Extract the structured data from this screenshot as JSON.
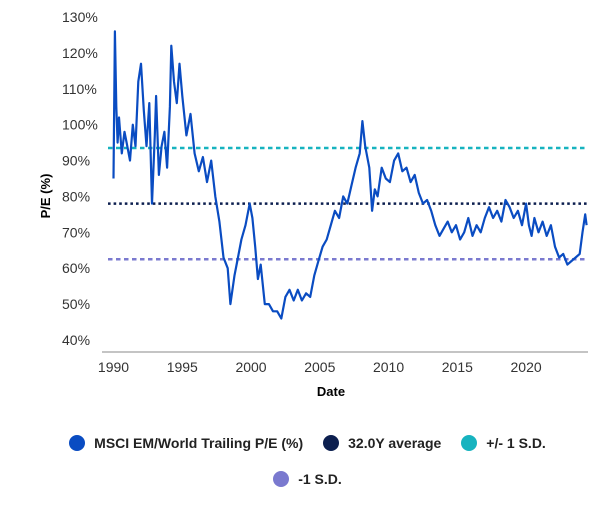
{
  "chart_data": {
    "type": "line",
    "title": "",
    "xlabel": "Date",
    "ylabel": "P/E (%)",
    "xlim": [
      1989.6,
      2024.5
    ],
    "ylim": [
      40,
      130
    ],
    "x_ticks": [
      1990,
      1995,
      2000,
      2005,
      2010,
      2015,
      2020
    ],
    "x_tick_labels": [
      "1990",
      "1995",
      "2000",
      "2005",
      "2010",
      "2015",
      "2020"
    ],
    "y_ticks": [
      40,
      50,
      60,
      70,
      80,
      90,
      100,
      110,
      120,
      130
    ],
    "y_tick_labels": [
      "40%",
      "50%",
      "60%",
      "70%",
      "80%",
      "90%",
      "100%",
      "110%",
      "120%",
      "130%"
    ],
    "grid": false,
    "series": [
      {
        "name": "MSCI EM/World Trailing P/E (%)",
        "color": "#0a4cc2",
        "x": [
          1990.0,
          1990.1,
          1990.2,
          1990.3,
          1990.4,
          1990.6,
          1990.8,
          1991.0,
          1991.2,
          1991.4,
          1991.6,
          1991.8,
          1992.0,
          1992.2,
          1992.4,
          1992.6,
          1992.8,
          1993.0,
          1993.1,
          1993.3,
          1993.5,
          1993.7,
          1993.9,
          1994.1,
          1994.2,
          1994.4,
          1994.6,
          1994.8,
          1995.0,
          1995.3,
          1995.6,
          1995.9,
          1996.2,
          1996.5,
          1996.8,
          1997.1,
          1997.4,
          1997.7,
          1998.0,
          1998.3,
          1998.5,
          1998.8,
          1999.0,
          1999.3,
          1999.6,
          1999.9,
          2000.1,
          2000.3,
          2000.5,
          2000.7,
          2001.0,
          2001.3,
          2001.6,
          2001.9,
          2002.2,
          2002.5,
          2002.8,
          2003.1,
          2003.4,
          2003.7,
          2004.0,
          2004.3,
          2004.6,
          2004.9,
          2005.2,
          2005.5,
          2005.8,
          2006.1,
          2006.4,
          2006.7,
          2007.0,
          2007.3,
          2007.6,
          2007.9,
          2008.1,
          2008.3,
          2008.6,
          2008.8,
          2009.0,
          2009.2,
          2009.5,
          2009.8,
          2010.1,
          2010.4,
          2010.7,
          2011.0,
          2011.3,
          2011.6,
          2011.9,
          2012.2,
          2012.5,
          2012.8,
          2013.1,
          2013.4,
          2013.7,
          2014.0,
          2014.3,
          2014.6,
          2014.9,
          2015.2,
          2015.5,
          2015.8,
          2016.1,
          2016.4,
          2016.7,
          2017.0,
          2017.3,
          2017.6,
          2017.9,
          2018.2,
          2018.5,
          2018.8,
          2019.1,
          2019.4,
          2019.7,
          2020.0,
          2020.2,
          2020.4,
          2020.6,
          2020.9,
          2021.2,
          2021.5,
          2021.8,
          2022.1,
          2022.4,
          2022.7,
          2023.0,
          2023.3,
          2023.6,
          2023.9,
          2024.1,
          2024.3,
          2024.4
        ],
        "values": [
          85,
          126,
          105,
          95,
          102,
          92,
          98,
          94,
          90,
          100,
          94,
          112,
          117,
          104,
          94,
          106,
          78,
          97,
          108,
          86,
          94,
          98,
          88,
          105,
          122,
          112,
          106,
          117,
          108,
          97,
          103,
          92,
          87,
          91,
          84,
          90,
          80,
          73,
          63,
          60,
          50,
          58,
          62,
          68,
          72,
          78,
          74,
          66,
          57,
          61,
          50,
          50,
          48,
          48,
          46,
          52,
          54,
          51,
          54,
          51,
          53,
          52,
          58,
          62,
          66,
          68,
          72,
          76,
          74,
          80,
          78,
          83,
          88,
          92,
          101,
          94,
          88,
          76,
          82,
          80,
          88,
          85,
          84,
          90,
          92,
          87,
          88,
          84,
          86,
          81,
          78,
          79,
          76,
          72,
          69,
          71,
          73,
          70,
          72,
          68,
          70,
          74,
          69,
          72,
          70,
          74,
          77,
          74,
          76,
          73,
          79,
          77,
          74,
          76,
          72,
          78,
          72,
          69,
          74,
          70,
          73,
          69,
          72,
          66,
          63,
          64,
          61,
          62,
          63,
          64,
          70,
          75,
          72
        ]
      },
      {
        "name": "32.0Y average",
        "color": "#0c1f4f",
        "x": [
          1989.6,
          2024.5
        ],
        "values": [
          78,
          78
        ]
      },
      {
        "name": "+/- 1 S.D.",
        "color": "#17b3bf",
        "x": [
          1989.6,
          2024.5
        ],
        "values": [
          93.5,
          93.5
        ]
      },
      {
        "name": "-1 S.D.",
        "color": "#7a79cf",
        "x": [
          1989.6,
          2024.5
        ],
        "values": [
          62.5,
          62.5
        ]
      }
    ]
  },
  "legend": {
    "items": [
      {
        "label": "MSCI EM/World Trailing P/E (%)",
        "color": "#0a4cc2"
      },
      {
        "label": "32.0Y average",
        "color": "#0c1f4f"
      },
      {
        "label": "+/- 1 S.D.",
        "color": "#17b3bf"
      },
      {
        "label": "-1 S.D.",
        "color": "#7a79cf"
      }
    ]
  }
}
